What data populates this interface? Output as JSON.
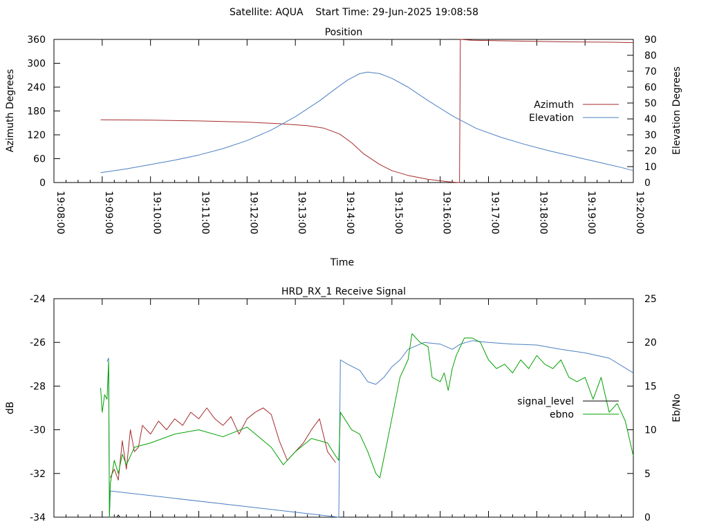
{
  "header": {
    "title": "Satellite: AQUA    Start Time: 29-Jun-2025 19:08:58"
  },
  "chart_data": [
    {
      "type": "line",
      "title": "Position",
      "xlabel": "Time",
      "ylabel": "Azimuth Degrees",
      "y2label": "Elevation Degrees",
      "xlim": [
        "19:08:00",
        "19:20:00"
      ],
      "ylim": [
        0,
        360
      ],
      "y2lim": [
        0,
        90
      ],
      "xticks": [
        "19:08:00",
        "19:09:00",
        "19:10:00",
        "19:11:00",
        "19:12:00",
        "19:13:00",
        "19:14:00",
        "19:15:00",
        "19:16:00",
        "19:17:00",
        "19:18:00",
        "19:19:00",
        "19:20:00"
      ],
      "yticks": [
        "0",
        "60",
        "120",
        "180",
        "240",
        "300",
        "360"
      ],
      "y2ticks": [
        "0",
        "10",
        "20",
        "30",
        "40",
        "50",
        "60",
        "70",
        "80",
        "90"
      ],
      "legend_position": "right",
      "series": [
        {
          "name": "Azimuth",
          "axis": "y1",
          "color": "#a52a2a",
          "points": [
            [
              "19:08:58",
              158
            ],
            [
              "19:10:00",
              157
            ],
            [
              "19:11:00",
              155
            ],
            [
              "19:12:00",
              152
            ],
            [
              "19:12:40",
              148
            ],
            [
              "19:13:15",
              143
            ],
            [
              "19:13:35",
              137
            ],
            [
              "19:13:55",
              122
            ],
            [
              "19:14:10",
              100
            ],
            [
              "19:14:25",
              72
            ],
            [
              "19:14:45",
              45
            ],
            [
              "19:15:00",
              30
            ],
            [
              "19:15:20",
              18
            ],
            [
              "19:15:45",
              8
            ],
            [
              "19:16:10",
              2
            ],
            [
              "19:16:20",
              0.5
            ],
            [
              "19:16:24",
              0
            ],
            [
              "19:16:25",
              360
            ],
            [
              "19:16:40",
              358
            ],
            [
              "19:17:30",
              356
            ],
            [
              "19:18:30",
              354
            ],
            [
              "19:19:30",
              353
            ],
            [
              "19:20:00",
              352
            ]
          ]
        },
        {
          "name": "Elevation",
          "axis": "y2",
          "color": "#4a7fc1",
          "points": [
            [
              "19:08:58",
              6.2
            ],
            [
              "19:09:30",
              8.6
            ],
            [
              "19:10:00",
              11.3
            ],
            [
              "19:10:30",
              14.1
            ],
            [
              "19:11:00",
              17.3
            ],
            [
              "19:11:30",
              21.3
            ],
            [
              "19:12:00",
              26.4
            ],
            [
              "19:12:30",
              33
            ],
            [
              "19:13:00",
              41.4
            ],
            [
              "19:13:30",
              51.4
            ],
            [
              "19:13:50",
              59
            ],
            [
              "19:14:05",
              64.5
            ],
            [
              "19:14:20",
              68.5
            ],
            [
              "19:14:30",
              69.5
            ],
            [
              "19:14:45",
              68.5
            ],
            [
              "19:15:00",
              65.5
            ],
            [
              "19:15:20",
              60
            ],
            [
              "19:15:45",
              51.5
            ],
            [
              "19:16:15",
              42
            ],
            [
              "19:16:45",
              34
            ],
            [
              "19:17:15",
              28.5
            ],
            [
              "19:17:45",
              24
            ],
            [
              "19:18:15",
              20
            ],
            [
              "19:18:45",
              16.5
            ],
            [
              "19:19:15",
              13
            ],
            [
              "19:19:45",
              9.5
            ],
            [
              "19:20:00",
              7.5
            ]
          ]
        }
      ]
    },
    {
      "type": "line",
      "title": "HRD_RX_1 Receive Signal",
      "xlabel": "",
      "ylabel": "dB",
      "y2label": "Eb/No",
      "xlim": [
        "19:08:00",
        "19:20:00"
      ],
      "ylim": [
        -34,
        -24
      ],
      "y2lim": [
        0,
        25
      ],
      "yticks": [
        "-34",
        "-32",
        "-30",
        "-28",
        "-26",
        "-24"
      ],
      "y2ticks": [
        "0",
        "5",
        "10",
        "15",
        "20",
        "25"
      ],
      "legend_position": "right",
      "series": [
        {
          "name": "signal_level",
          "axis": "y1",
          "color": "#000000",
          "points": [
            [
              "19:09:18",
              -34
            ],
            [
              "19:09:20",
              -33.9
            ],
            [
              "19:09:22",
              -34
            ]
          ]
        },
        {
          "name": "ebno",
          "axis": "y2",
          "color": "#00a000",
          "points": [
            [
              "19:08:58",
              14.8
            ],
            [
              "19:09:00",
              12
            ],
            [
              "19:09:03",
              14
            ],
            [
              "19:09:06",
              13.5
            ],
            [
              "19:09:08",
              17.8
            ],
            [
              "19:09:09",
              0
            ],
            [
              "19:09:10",
              3.8
            ],
            [
              "19:09:15",
              6.5
            ],
            [
              "19:09:20",
              5
            ],
            [
              "19:09:25",
              7.2
            ],
            [
              "19:09:30",
              6
            ],
            [
              "19:09:40",
              8
            ],
            [
              "19:10:00",
              8.5
            ],
            [
              "19:10:30",
              9.5
            ],
            [
              "19:11:00",
              10
            ],
            [
              "19:11:30",
              9.2
            ],
            [
              "19:12:00",
              10.3
            ],
            [
              "19:12:30",
              8
            ],
            [
              "19:12:45",
              6
            ],
            [
              "19:13:00",
              7.5
            ],
            [
              "19:13:20",
              9
            ],
            [
              "19:13:40",
              8.5
            ],
            [
              "19:13:50",
              7
            ],
            [
              "19:13:54",
              6.5
            ],
            [
              "19:13:56",
              12
            ],
            [
              "19:14:10",
              10
            ],
            [
              "19:14:20",
              9.5
            ],
            [
              "19:14:30",
              7.5
            ],
            [
              "19:14:40",
              5
            ],
            [
              "19:14:45",
              4.5
            ],
            [
              "19:14:55",
              9
            ],
            [
              "19:15:10",
              16
            ],
            [
              "19:15:20",
              18
            ],
            [
              "19:15:25",
              21
            ],
            [
              "19:15:35",
              20
            ],
            [
              "19:15:45",
              19.5
            ],
            [
              "19:15:50",
              16
            ],
            [
              "19:16:00",
              15.5
            ],
            [
              "19:16:05",
              16.5
            ],
            [
              "19:16:10",
              14.5
            ],
            [
              "19:16:15",
              17
            ],
            [
              "19:16:20",
              18.5
            ],
            [
              "19:16:30",
              20.5
            ],
            [
              "19:16:40",
              20.5
            ],
            [
              "19:16:50",
              20
            ],
            [
              "19:17:00",
              18
            ],
            [
              "19:17:10",
              17
            ],
            [
              "19:17:20",
              17.5
            ],
            [
              "19:17:30",
              16.5
            ],
            [
              "19:17:40",
              18
            ],
            [
              "19:17:50",
              17
            ],
            [
              "19:18:00",
              18.5
            ],
            [
              "19:18:10",
              17.5
            ],
            [
              "19:18:20",
              17
            ],
            [
              "19:18:30",
              18
            ],
            [
              "19:18:40",
              16
            ],
            [
              "19:18:50",
              15.5
            ],
            [
              "19:19:00",
              16
            ],
            [
              "19:19:10",
              13.5
            ],
            [
              "19:19:20",
              16
            ],
            [
              "19:19:30",
              12
            ],
            [
              "19:19:40",
              13
            ],
            [
              "19:19:50",
              11
            ],
            [
              "19:20:00",
              7
            ]
          ]
        }
      ],
      "unlabeled_lines": [
        {
          "axis": "y1",
          "color": "#a52a2a",
          "points": [
            [
              "19:09:10",
              -32.2
            ],
            [
              "19:09:15",
              -31.8
            ],
            [
              "19:09:20",
              -32.3
            ],
            [
              "19:09:25",
              -30.5
            ],
            [
              "19:09:30",
              -31.8
            ],
            [
              "19:09:35",
              -30
            ],
            [
              "19:09:40",
              -31
            ],
            [
              "19:09:45",
              -30.8
            ],
            [
              "19:09:50",
              -29.8
            ],
            [
              "19:10:00",
              -30.2
            ],
            [
              "19:10:10",
              -29.6
            ],
            [
              "19:10:20",
              -30
            ],
            [
              "19:10:30",
              -29.5
            ],
            [
              "19:10:40",
              -29.8
            ],
            [
              "19:10:50",
              -29.2
            ],
            [
              "19:11:00",
              -29.5
            ],
            [
              "19:11:10",
              -29
            ],
            [
              "19:11:20",
              -29.5
            ],
            [
              "19:11:30",
              -29.8
            ],
            [
              "19:11:40",
              -29.4
            ],
            [
              "19:11:50",
              -30.2
            ],
            [
              "19:12:00",
              -29.5
            ],
            [
              "19:12:10",
              -29.2
            ],
            [
              "19:12:20",
              -29
            ],
            [
              "19:12:30",
              -29.3
            ],
            [
              "19:12:40",
              -30.5
            ],
            [
              "19:12:50",
              -31.4
            ],
            [
              "19:13:00",
              -31
            ],
            [
              "19:13:10",
              -30.6
            ],
            [
              "19:13:20",
              -30
            ],
            [
              "19:13:30",
              -29.5
            ],
            [
              "19:13:40",
              -31
            ],
            [
              "19:13:50",
              -31.5
            ]
          ]
        },
        {
          "axis": "y2",
          "color": "#4a7fc1",
          "points": [
            [
              "19:09:06",
              17.8
            ],
            [
              "19:09:08",
              18.2
            ],
            [
              "19:09:09",
              0
            ],
            [
              "19:09:10",
              3
            ],
            [
              "19:13:54",
              0
            ],
            [
              "19:13:56",
              18
            ],
            [
              "19:14:05",
              17.5
            ],
            [
              "19:14:20",
              16.8
            ],
            [
              "19:14:30",
              15.5
            ],
            [
              "19:14:40",
              15.2
            ],
            [
              "19:14:50",
              16
            ],
            [
              "19:15:00",
              17.2
            ],
            [
              "19:15:10",
              18
            ],
            [
              "19:15:20",
              19.2
            ],
            [
              "19:15:40",
              20
            ],
            [
              "19:16:00",
              19.8
            ],
            [
              "19:16:15",
              19.2
            ],
            [
              "19:16:25",
              19.8
            ],
            [
              "19:16:40",
              20.2
            ],
            [
              "19:17:00",
              20
            ],
            [
              "19:17:30",
              19.8
            ],
            [
              "19:18:00",
              19.7
            ],
            [
              "19:18:30",
              19.2
            ],
            [
              "19:19:00",
              18.8
            ],
            [
              "19:19:30",
              18.2
            ],
            [
              "19:20:00",
              16.5
            ]
          ]
        }
      ]
    }
  ]
}
